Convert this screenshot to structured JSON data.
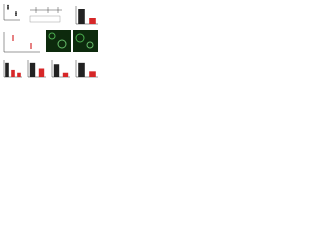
{
  "chart_data": [
    {
      "type": "scatter",
      "x": [
        1,
        1,
        1,
        2,
        2,
        2
      ],
      "values": [
        0.8,
        0.7,
        0.9,
        0.4,
        0.3,
        0.5
      ],
      "color": "#222222",
      "xlim": [
        0.5,
        2.5
      ],
      "ylim": [
        0,
        1
      ]
    },
    {
      "type": "bar",
      "categories": [
        null,
        null
      ],
      "values": [
        1,
        0.4
      ],
      "colors": [
        "#222222",
        "#d62728"
      ],
      "ylim": [
        0,
        1.2
      ]
    },
    {
      "type": "scatter",
      "x": [
        1,
        1,
        1,
        2,
        2,
        2
      ],
      "values": [
        0.7,
        0.8,
        0.6,
        0.3,
        0.4,
        0.2
      ],
      "color": "#d62728",
      "xlim": [
        0.5,
        2.5
      ],
      "ylim": [
        0,
        1
      ]
    },
    {
      "type": "bar",
      "categories": [
        null,
        null,
        null
      ],
      "values": [
        1,
        0.5,
        0.3
      ],
      "colors": [
        "#222222",
        "#d62728",
        "#d62728"
      ],
      "ylim": [
        0,
        1.2
      ]
    },
    {
      "type": "bar",
      "categories": [
        null,
        null
      ],
      "values": [
        1,
        0.6
      ],
      "colors": [
        "#222222",
        "#d62728"
      ],
      "ylim": [
        0,
        1.2
      ]
    },
    {
      "type": "bar",
      "categories": [
        null,
        null
      ],
      "values": [
        0.9,
        0.3
      ],
      "colors": [
        "#222222",
        "#d62728"
      ],
      "ylim": [
        0,
        1.2
      ]
    },
    {
      "type": "bar",
      "categories": [
        null,
        null
      ],
      "values": [
        1,
        0.4
      ],
      "colors": [
        "#222222",
        "#d62728"
      ],
      "ylim": [
        0,
        1.2
      ]
    }
  ]
}
